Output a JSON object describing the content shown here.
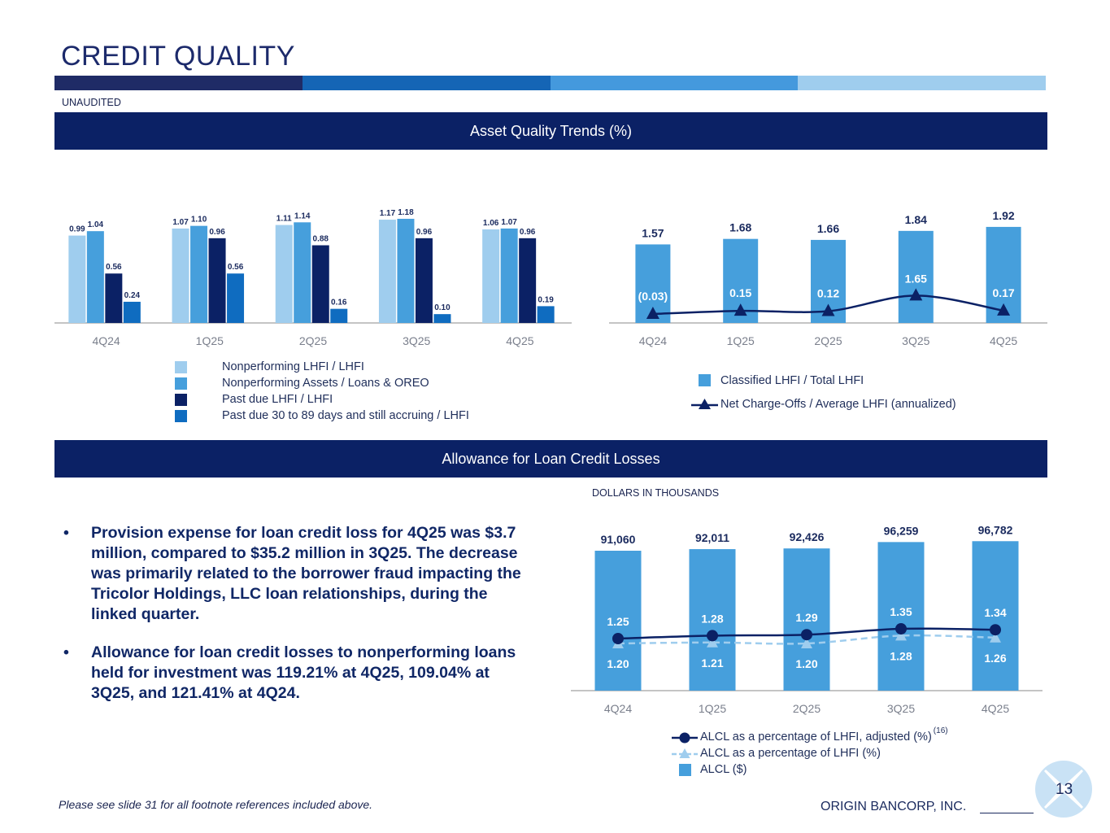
{
  "header": {
    "title": "CREDIT QUALITY",
    "unaudited": "UNAUDITED",
    "bar_colors": [
      "#1f2b66",
      "#1565b5",
      "#4499dd",
      "#9fcdee"
    ]
  },
  "sections": {
    "asset_quality": "Asset Quality Trends (%)",
    "allowance": "Allowance for Loan Credit Losses"
  },
  "legend_left": [
    {
      "label": "Nonperforming LHFI / LHFI",
      "color": "#9fcdee"
    },
    {
      "label": "Nonperforming Assets / Loans & OREO",
      "color": "#469fdc"
    },
    {
      "label": "Past due LHFI / LHFI",
      "color": "#0b2165"
    },
    {
      "label": "Past due 30 to 89 days and still accruing / LHFI",
      "color": "#0f6cc0"
    }
  ],
  "legend_right": [
    {
      "label": "Classified LHFI / Total LHFI",
      "color": "#469fdc"
    },
    {
      "label": "Net Charge-Offs / Average LHFI (annualized)",
      "color": "#0b2165"
    }
  ],
  "legend_bottom": [
    {
      "label": "ALCL as a percentage of LHFI, adjusted (%)",
      "sup": "(16)",
      "color": "#0b2165"
    },
    {
      "label": "ALCL as a percentage of LHFI (%)",
      "color": "#9fcdee"
    },
    {
      "label": "ALCL ($)",
      "color": "#469fdc"
    }
  ],
  "bullets": [
    "Provision expense for loan credit loss for 4Q25 was $3.7 million, compared to $35.2 million in 3Q25. The decrease was primarily related to the borrower fraud impacting the Tricolor Holdings, LLC loan relationships, during the linked quarter.",
    "Allowance for loan credit losses to nonperforming loans held for investment was 119.21% at 4Q25, 109.04% at 3Q25, and 121.41% at 4Q24."
  ],
  "dollars_note": "DOLLARS IN THOUSANDS",
  "footer": {
    "footnote": "Please see slide 31 for all footnote references included above.",
    "company": "ORIGIN BANCORP, INC.",
    "page": "13"
  },
  "chart_data": [
    {
      "type": "bar",
      "title": "Asset Quality Trends (%)",
      "categories": [
        "4Q24",
        "1Q25",
        "2Q25",
        "3Q25",
        "4Q25"
      ],
      "series": [
        {
          "name": "Nonperforming LHFI / LHFI",
          "values": [
            0.99,
            1.07,
            1.11,
            1.17,
            1.06
          ],
          "labels": [
            "0.99",
            "1.07",
            "1.11",
            "1.17",
            "1.06"
          ]
        },
        {
          "name": "Nonperforming Assets / Loans & OREO",
          "values": [
            1.04,
            1.1,
            1.14,
            1.18,
            1.07
          ],
          "labels": [
            "1.04",
            "1.10",
            "1.14",
            "1.18",
            "1.07"
          ]
        },
        {
          "name": "Past due LHFI / LHFI",
          "values": [
            0.56,
            0.96,
            0.88,
            0.96,
            0.96
          ],
          "labels": [
            "0.56",
            "0.96",
            "0.88",
            "0.96",
            "0.96"
          ]
        },
        {
          "name": "Past due 30 to 89 days and still accruing / LHFI",
          "values": [
            0.24,
            0.56,
            0.16,
            0.1,
            0.19
          ],
          "labels": [
            "0.24",
            "0.56",
            "0.16",
            "0.10",
            "0.19"
          ]
        }
      ],
      "ylim": [
        0,
        1.3
      ]
    },
    {
      "type": "bar+line",
      "categories": [
        "4Q24",
        "1Q25",
        "2Q25",
        "3Q25",
        "4Q25"
      ],
      "bars": {
        "name": "Classified LHFI / Total LHFI",
        "values": [
          1.57,
          1.68,
          1.66,
          1.84,
          1.92
        ],
        "labels": [
          "1.57",
          "1.68",
          "1.66",
          "1.84",
          "1.92"
        ]
      },
      "line": {
        "name": "Net Charge-Offs / Average LHFI (annualized)",
        "values": [
          -0.03,
          0.15,
          0.12,
          1.65,
          0.17
        ],
        "labels": [
          "(0.03)",
          "0.15",
          "0.12",
          "1.65",
          "0.17"
        ]
      },
      "ylim": [
        0,
        2.1
      ]
    },
    {
      "type": "bar+line",
      "title": "Allowance for Loan Credit Losses",
      "categories": [
        "4Q24",
        "1Q25",
        "2Q25",
        "3Q25",
        "4Q25"
      ],
      "bars": {
        "name": "ALCL ($)",
        "values": [
          91060,
          92011,
          92426,
          96259,
          96782
        ],
        "labels": [
          "91,060",
          "92,011",
          "92,426",
          "96,259",
          "96,782"
        ]
      },
      "lines": [
        {
          "name": "ALCL as a percentage of LHFI, adjusted (%)",
          "values": [
            1.25,
            1.28,
            1.29,
            1.35,
            1.34
          ],
          "labels": [
            "1.25",
            "1.28",
            "1.29",
            "1.35",
            "1.34"
          ]
        },
        {
          "name": "ALCL as a percentage of LHFI (%)",
          "values": [
            1.2,
            1.21,
            1.2,
            1.28,
            1.26
          ],
          "labels": [
            "1.20",
            "1.21",
            "1.20",
            "1.28",
            "1.26"
          ]
        }
      ]
    }
  ]
}
